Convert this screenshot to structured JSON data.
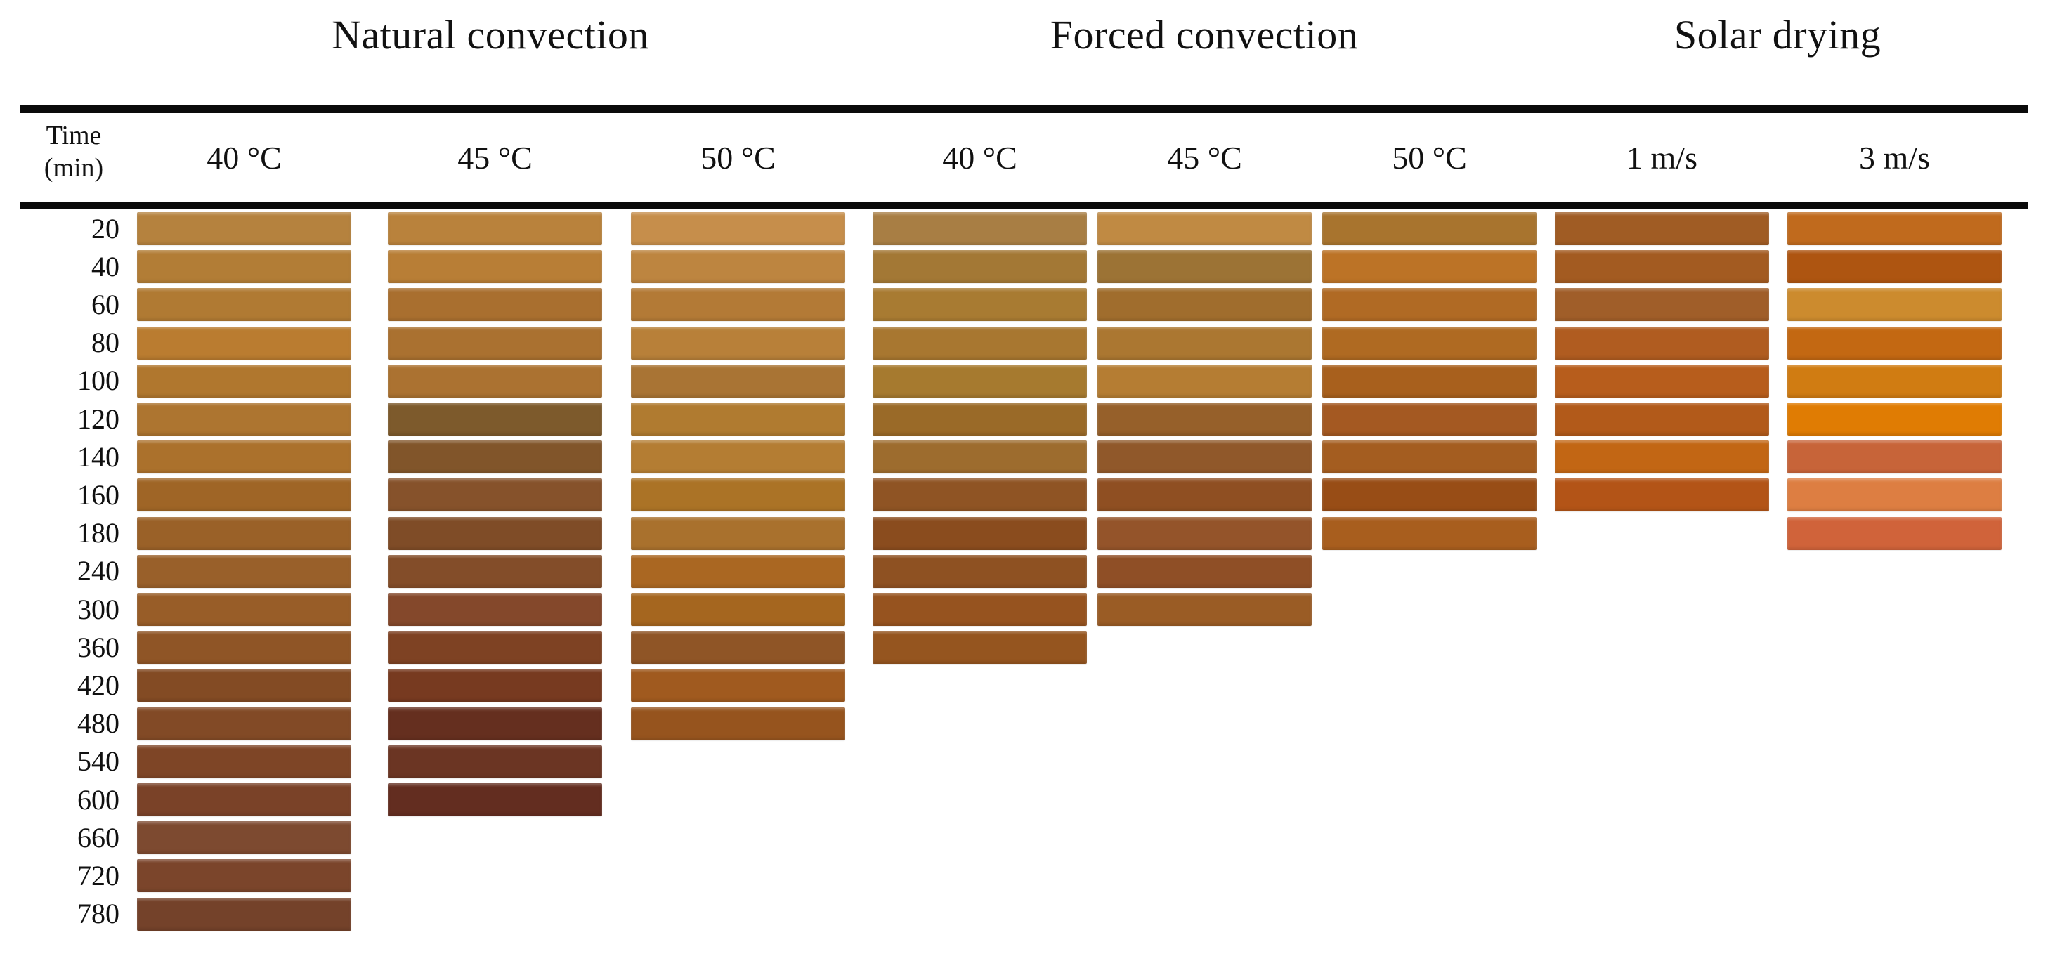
{
  "figure": {
    "time_header": {
      "line1": "Time",
      "line2": "(min)"
    }
  },
  "chart_data": {
    "type": "heatmap",
    "x_categories": [
      "40 °C",
      "45 °C",
      "50 °C",
      "40 °C",
      "45 °C",
      "50 °C",
      "1 m/s",
      "3 m/s"
    ],
    "y_categories": [
      20,
      40,
      60,
      80,
      100,
      120,
      140,
      160,
      180,
      240,
      300,
      360,
      420,
      480,
      540,
      600,
      660,
      720,
      780
    ],
    "ylabel": "Time (min)",
    "legend_position": "none",
    "grid": false,
    "column_groups": [
      {
        "label": "Natural convection",
        "columns": [
          0,
          1,
          2
        ]
      },
      {
        "label": "Forced convection",
        "columns": [
          3,
          4,
          5
        ]
      },
      {
        "label": "Solar drying",
        "columns": [
          6,
          7
        ]
      }
    ],
    "series": [
      {
        "group": "Natural convection",
        "label": "40 °C",
        "colors": [
          "#b5823e",
          "#b27d36",
          "#b07a33",
          "#ba7c30",
          "#b0772e",
          "#ad7530",
          "#ab712c",
          "#9f6526",
          "#9a6128",
          "#99602a",
          "#985d28",
          "#8f5526",
          "#834b24",
          "#824a26",
          "#7e4526",
          "#7a4228",
          "#7d4a30",
          "#7b452b",
          "#74422a"
        ]
      },
      {
        "group": "Natural convection",
        "label": "45 °C",
        "colors": [
          "#b9823c",
          "#b87e36",
          "#a96f2f",
          "#aa7130",
          "#ab7231",
          "#7d5a2c",
          "#81552a",
          "#86522b",
          "#7f4c27",
          "#834d29",
          "#84482b",
          "#7e4223",
          "#773a20",
          "#652f1f",
          "#6b3523",
          "#632d20"
        ]
      },
      {
        "group": "Natural convection",
        "label": "50 °C",
        "colors": [
          "#c68e4b",
          "#bd8540",
          "#b37a36",
          "#b88039",
          "#a97434",
          "#b07b30",
          "#b47d33",
          "#ab7326",
          "#a9712d",
          "#aa6722",
          "#a5661f",
          "#8f5526",
          "#a05a1f",
          "#96541e"
        ]
      },
      {
        "group": "Forced convection",
        "label": "40 °C",
        "colors": [
          "#a87e44",
          "#a37835",
          "#a87b32",
          "#a87730",
          "#a67a2f",
          "#9a6a28",
          "#9d6c2e",
          "#8f5424",
          "#8a4c1e",
          "#8e5122",
          "#96531f",
          "#95551f"
        ]
      },
      {
        "group": "Forced convection",
        "label": "45 °C",
        "colors": [
          "#c08a43",
          "#9c7335",
          "#a06d2d",
          "#ab7731",
          "#b57d33",
          "#96602a",
          "#90582a",
          "#8f4f22",
          "#94542a",
          "#8f4f26",
          "#9a5c25"
        ]
      },
      {
        "group": "Forced convection",
        "label": "50 °C",
        "colors": [
          "#a8742e",
          "#bc7326",
          "#b06a24",
          "#af6a22",
          "#a8601d",
          "#a45922",
          "#a45d20",
          "#984d16",
          "#a85e1e"
        ]
      },
      {
        "group": "Solar drying",
        "label": "1 m/s",
        "colors": [
          "#a05c24",
          "#a35b21",
          "#a05e29",
          "#b05c20",
          "#b75d1c",
          "#b25a1a",
          "#c26614",
          "#b35417"
        ]
      },
      {
        "group": "Solar drying",
        "label": "3 m/s",
        "colors": [
          "#c06a1d",
          "#ae5511",
          "#cc8b2e",
          "#c36812",
          "#d07c12",
          "#e07c03",
          "#c76439",
          "#dd7e42",
          "#d0633a"
        ]
      }
    ]
  }
}
